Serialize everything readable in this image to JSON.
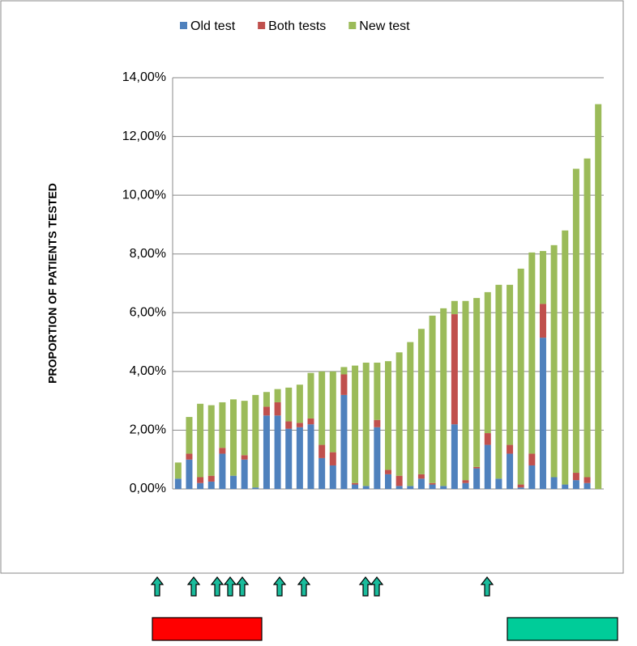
{
  "chart_data": {
    "type": "stacked_bar",
    "y_label": "PROPORTION OF PATIENTS TESTED",
    "categories": [
      null,
      null,
      null,
      null,
      null,
      null,
      null,
      null,
      null,
      null,
      null,
      null,
      null,
      null,
      null,
      null,
      null,
      null,
      null,
      null,
      null,
      null,
      null,
      null,
      null,
      null,
      null,
      null,
      null,
      null,
      null,
      null,
      null,
      null,
      null,
      null,
      null,
      null,
      null
    ],
    "series": [
      {
        "name": "Old test",
        "color": "#4f81bd",
        "values": [
          0.35,
          1.0,
          0.2,
          0.25,
          1.2,
          0.45,
          1.0,
          0.05,
          2.5,
          2.5,
          2.05,
          2.1,
          2.2,
          1.05,
          0.8,
          3.2,
          0.15,
          0.1,
          2.1,
          0.5,
          0.1,
          0.1,
          0.35,
          0.15,
          0.1,
          2.2,
          0.2,
          0.7,
          1.5,
          0.35,
          1.2,
          0.05,
          0.8,
          5.15,
          0.4,
          0.15,
          0.3,
          0.2,
          0
        ]
      },
      {
        "name": "Both tests",
        "color": "#c0504d",
        "values": [
          0,
          0.2,
          0.2,
          0.2,
          0.2,
          0,
          0.15,
          0,
          0.3,
          0.45,
          0.25,
          0.15,
          0.2,
          0.45,
          0.45,
          0.7,
          0.05,
          0,
          0.25,
          0.15,
          0.35,
          0,
          0.15,
          0.05,
          0,
          3.75,
          0.1,
          0.05,
          0.4,
          0,
          0.3,
          0.1,
          0.4,
          1.15,
          0,
          0,
          0.25,
          0.2,
          0
        ]
      },
      {
        "name": "New test",
        "color": "#9bbb59",
        "values": [
          0.55,
          1.25,
          2.5,
          2.4,
          1.55,
          2.6,
          1.85,
          3.15,
          0.5,
          0.45,
          1.15,
          1.3,
          1.55,
          2.5,
          2.75,
          0.25,
          4.0,
          4.2,
          1.95,
          3.7,
          4.2,
          4.9,
          4.95,
          5.7,
          6.05,
          0.45,
          6.1,
          5.75,
          4.8,
          6.6,
          5.45,
          7.35,
          6.85,
          1.8,
          7.9,
          8.65,
          10.35,
          10.85,
          13.1
        ]
      }
    ],
    "ylim": [
      0,
      14
    ],
    "yticks": [
      {
        "value": 0,
        "label": "0,00%"
      },
      {
        "value": 2,
        "label": "2,00%"
      },
      {
        "value": 4,
        "label": "4,00%"
      },
      {
        "value": 6,
        "label": "6,00%"
      },
      {
        "value": 8,
        "label": "8,00%"
      },
      {
        "value": 10,
        "label": "10,00%"
      },
      {
        "value": 12,
        "label": "12,00%"
      },
      {
        "value": 14,
        "label": "14,00%"
      }
    ],
    "grid": true
  }
}
